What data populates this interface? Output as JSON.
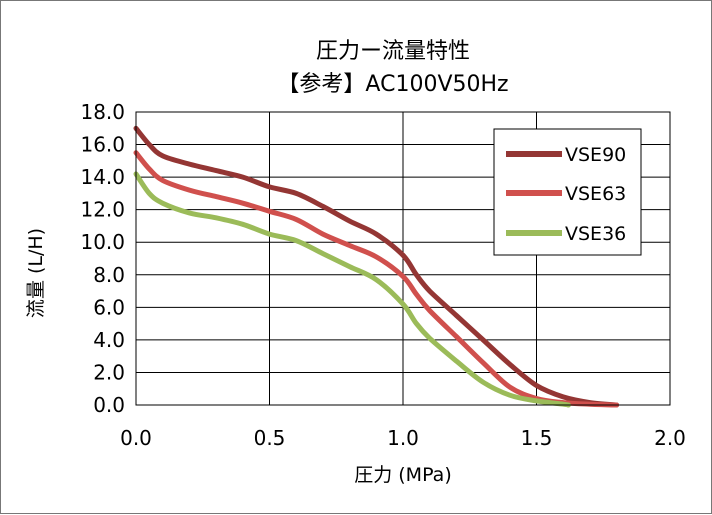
{
  "chart_data": {
    "type": "line",
    "title": "圧力ー流量特性",
    "subtitle": "【参考】AC100V50Hz",
    "xlabel": "圧力 (MPa)",
    "ylabel": "流量 (L/H)",
    "xlim": [
      0,
      2.0
    ],
    "ylim": [
      0,
      18.0
    ],
    "xticks": [
      "0.0",
      "0.5",
      "1.0",
      "1.5",
      "2.0"
    ],
    "yticks": [
      "0.0",
      "2.0",
      "4.0",
      "6.0",
      "8.0",
      "10.0",
      "12.0",
      "14.0",
      "16.0",
      "18.0"
    ],
    "grid": true,
    "legend_position": "top-right",
    "series": [
      {
        "name": "VSE90",
        "color": "#943634",
        "points": [
          [
            0.0,
            17.0
          ],
          [
            0.05,
            16.0
          ],
          [
            0.1,
            15.3
          ],
          [
            0.2,
            14.8
          ],
          [
            0.3,
            14.4
          ],
          [
            0.4,
            14.0
          ],
          [
            0.5,
            13.4
          ],
          [
            0.6,
            13.0
          ],
          [
            0.7,
            12.2
          ],
          [
            0.8,
            11.3
          ],
          [
            0.9,
            10.5
          ],
          [
            1.0,
            9.2
          ],
          [
            1.05,
            8.0
          ],
          [
            1.1,
            7.0
          ],
          [
            1.2,
            5.5
          ],
          [
            1.3,
            4.0
          ],
          [
            1.4,
            2.5
          ],
          [
            1.5,
            1.2
          ],
          [
            1.6,
            0.5
          ],
          [
            1.7,
            0.15
          ],
          [
            1.8,
            0.0
          ]
        ]
      },
      {
        "name": "VSE63",
        "color": "#D0504D",
        "points": [
          [
            0.0,
            15.5
          ],
          [
            0.05,
            14.5
          ],
          [
            0.1,
            13.8
          ],
          [
            0.2,
            13.2
          ],
          [
            0.3,
            12.8
          ],
          [
            0.4,
            12.4
          ],
          [
            0.5,
            11.9
          ],
          [
            0.6,
            11.4
          ],
          [
            0.7,
            10.5
          ],
          [
            0.8,
            9.8
          ],
          [
            0.9,
            9.1
          ],
          [
            1.0,
            7.9
          ],
          [
            1.05,
            6.8
          ],
          [
            1.1,
            5.8
          ],
          [
            1.2,
            4.2
          ],
          [
            1.3,
            2.6
          ],
          [
            1.4,
            1.1
          ],
          [
            1.5,
            0.4
          ],
          [
            1.6,
            0.15
          ],
          [
            1.7,
            0.05
          ],
          [
            1.8,
            0.0
          ]
        ]
      },
      {
        "name": "VSE36",
        "color": "#9BBB59",
        "points": [
          [
            0.0,
            14.2
          ],
          [
            0.05,
            13.0
          ],
          [
            0.1,
            12.4
          ],
          [
            0.2,
            11.8
          ],
          [
            0.3,
            11.5
          ],
          [
            0.4,
            11.1
          ],
          [
            0.5,
            10.5
          ],
          [
            0.6,
            10.1
          ],
          [
            0.7,
            9.3
          ],
          [
            0.8,
            8.5
          ],
          [
            0.9,
            7.7
          ],
          [
            1.0,
            6.2
          ],
          [
            1.05,
            5.0
          ],
          [
            1.1,
            4.1
          ],
          [
            1.2,
            2.7
          ],
          [
            1.3,
            1.4
          ],
          [
            1.4,
            0.6
          ],
          [
            1.5,
            0.25
          ],
          [
            1.6,
            0.05
          ],
          [
            1.62,
            0.0
          ]
        ]
      }
    ]
  }
}
